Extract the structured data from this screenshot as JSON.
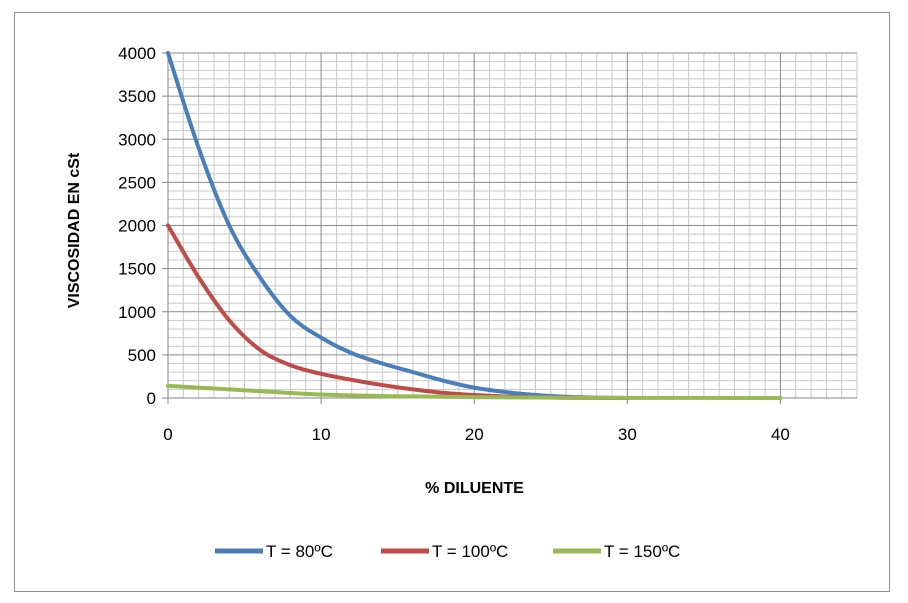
{
  "chart_data": {
    "type": "line",
    "title": "",
    "xlabel": "% DILUENTE",
    "ylabel": "VISCOSIDAD EN cSt",
    "xlim": [
      0,
      45
    ],
    "ylim": [
      0,
      4000
    ],
    "x_ticks": [
      0,
      10,
      20,
      30,
      40
    ],
    "y_ticks": [
      0,
      500,
      1000,
      1500,
      2000,
      2500,
      3000,
      3500,
      4000
    ],
    "grid": true,
    "legend": "bottom",
    "series": [
      {
        "name": "T = 80ºC",
        "color": "#4a7ebb",
        "x": [
          0,
          2,
          4,
          6,
          8,
          10,
          12,
          14,
          16,
          18,
          20,
          22,
          24,
          26,
          28,
          30
        ],
        "y": [
          4000,
          2900,
          2000,
          1400,
          950,
          700,
          520,
          400,
          300,
          200,
          120,
          70,
          35,
          15,
          5,
          0
        ]
      },
      {
        "name": "T = 100ºC",
        "color": "#be4b48",
        "x": [
          0,
          2,
          4,
          6,
          8,
          10,
          12,
          14,
          16,
          18,
          20,
          22,
          24,
          26,
          28,
          30
        ],
        "y": [
          2000,
          1400,
          900,
          560,
          380,
          280,
          210,
          150,
          100,
          60,
          35,
          18,
          8,
          3,
          1,
          0
        ]
      },
      {
        "name": "T = 150ºC",
        "color": "#98b954",
        "x": [
          0,
          5,
          10,
          15,
          20,
          25,
          30,
          35,
          40
        ],
        "y": [
          140,
          90,
          40,
          20,
          10,
          5,
          2,
          1,
          0
        ]
      }
    ]
  }
}
